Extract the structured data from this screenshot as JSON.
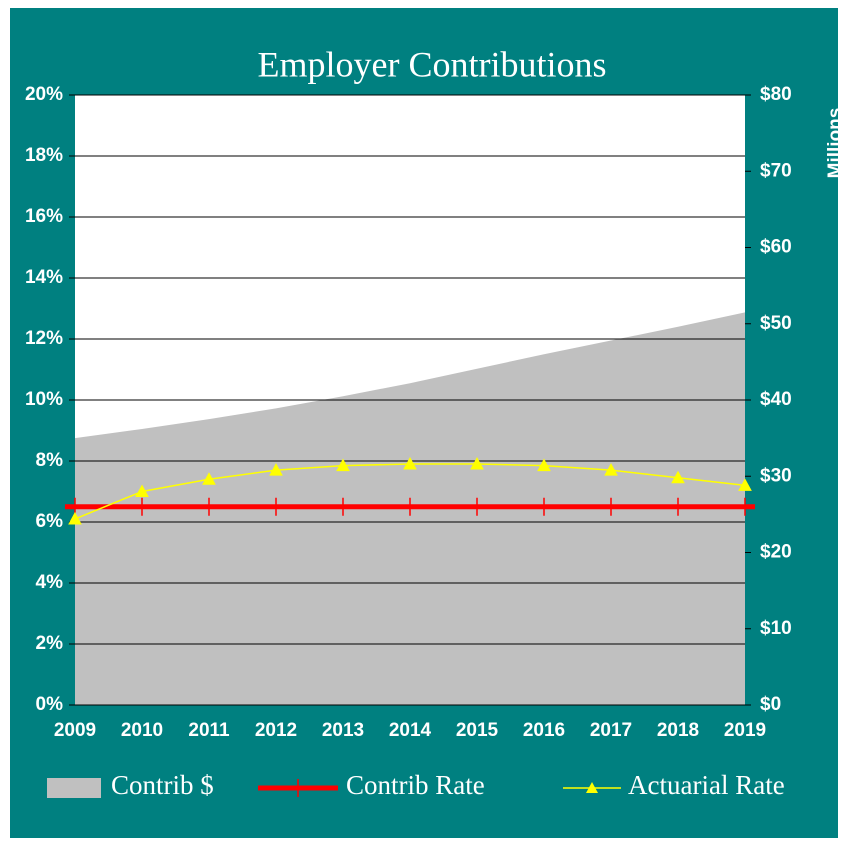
{
  "chart_data": {
    "type": "combo",
    "title": "Employer Contributions",
    "y2_label": "Millions",
    "categories": [
      "2009",
      "2010",
      "2011",
      "2012",
      "2013",
      "2014",
      "2015",
      "2016",
      "2017",
      "2018",
      "2019"
    ],
    "series": [
      {
        "name": "Contrib $",
        "type": "area",
        "axis": "y2",
        "color": "#c0c0c0",
        "values": [
          35,
          36.2,
          37.5,
          38.9,
          40.5,
          42.2,
          44.1,
          46,
          47.8,
          49.6,
          51.5
        ]
      },
      {
        "name": "Contrib Rate",
        "type": "line",
        "marker": "cross",
        "color": "#ff0000",
        "values": [
          6.5,
          6.5,
          6.5,
          6.5,
          6.5,
          6.5,
          6.5,
          6.5,
          6.5,
          6.5,
          6.5
        ]
      },
      {
        "name": "Actuarial Rate",
        "type": "line",
        "marker": "triangle",
        "color": "#ffff00",
        "values": [
          6.1,
          7.0,
          7.4,
          7.7,
          7.85,
          7.9,
          7.9,
          7.85,
          7.7,
          7.45,
          7.2
        ]
      }
    ],
    "ylim": [
      0,
      20
    ],
    "yticks": [
      {
        "value": 0,
        "label": "0%"
      },
      {
        "value": 2,
        "label": "2%"
      },
      {
        "value": 4,
        "label": "4%"
      },
      {
        "value": 6,
        "label": "6%"
      },
      {
        "value": 8,
        "label": "8%"
      },
      {
        "value": 10,
        "label": "10%"
      },
      {
        "value": 12,
        "label": "12%"
      },
      {
        "value": 14,
        "label": "14%"
      },
      {
        "value": 16,
        "label": "16%"
      },
      {
        "value": 18,
        "label": "18%"
      },
      {
        "value": 20,
        "label": "20%"
      }
    ],
    "y2lim": [
      0,
      80
    ],
    "y2ticks": [
      {
        "value": 0,
        "label": "$0"
      },
      {
        "value": 10,
        "label": "$10"
      },
      {
        "value": 20,
        "label": "$20"
      },
      {
        "value": 30,
        "label": "$30"
      },
      {
        "value": 40,
        "label": "$40"
      },
      {
        "value": 50,
        "label": "$50"
      },
      {
        "value": 60,
        "label": "$60"
      },
      {
        "value": 70,
        "label": "$70"
      },
      {
        "value": 80,
        "label": "$80"
      }
    ],
    "grid": true,
    "legend": "bottom"
  }
}
